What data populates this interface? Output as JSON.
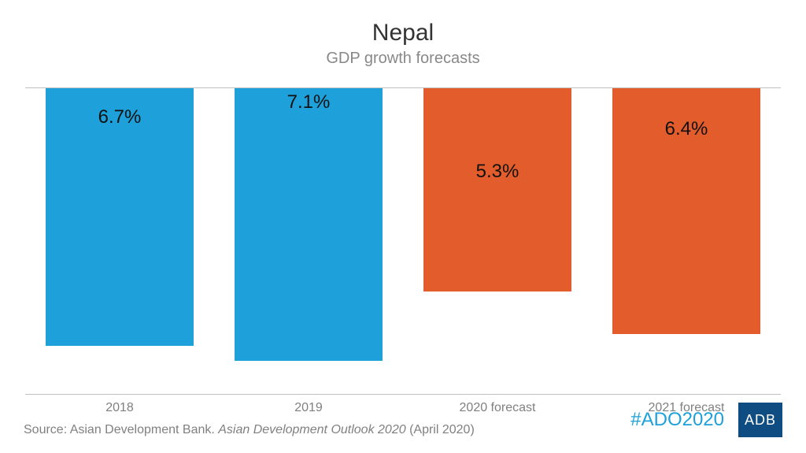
{
  "chart": {
    "type": "bar",
    "title": "Nepal",
    "subtitle": "GDP growth forecasts",
    "title_fontsize": 30,
    "subtitle_fontsize": 20,
    "title_color": "#333333",
    "subtitle_color": "#888888",
    "ymax": 8.0,
    "background_color": "#ffffff",
    "border_color": "#c0c0c0",
    "bar_width_pct": 78,
    "value_label_fontsize": 24,
    "value_label_color": "#111111",
    "category_label_fontsize": 16,
    "category_label_color": "#808080",
    "bars": [
      {
        "category": "2018",
        "value": 6.7,
        "label": "6.7%",
        "color": "#1ea0da"
      },
      {
        "category": "2019",
        "value": 7.1,
        "label": "7.1%",
        "color": "#1ea0da"
      },
      {
        "category": "2020 forecast",
        "value": 5.3,
        "label": "5.3%",
        "color": "#e35c2b"
      },
      {
        "category": "2021 forecast",
        "value": 6.4,
        "label": "6.4%",
        "color": "#e35c2b"
      }
    ]
  },
  "footer": {
    "source_prefix": "Source: Asian Development Bank. ",
    "source_italic": "Asian Development Outlook 2020 ",
    "source_suffix": "(April 2020)",
    "source_fontsize": 16,
    "source_color": "#808080",
    "hashtag": "#ADO2020",
    "hashtag_color": "#1ea0da",
    "hashtag_fontsize": 24,
    "logo_text": "ADB",
    "logo_bg": "#0f4c81",
    "logo_fg": "#ffffff"
  }
}
